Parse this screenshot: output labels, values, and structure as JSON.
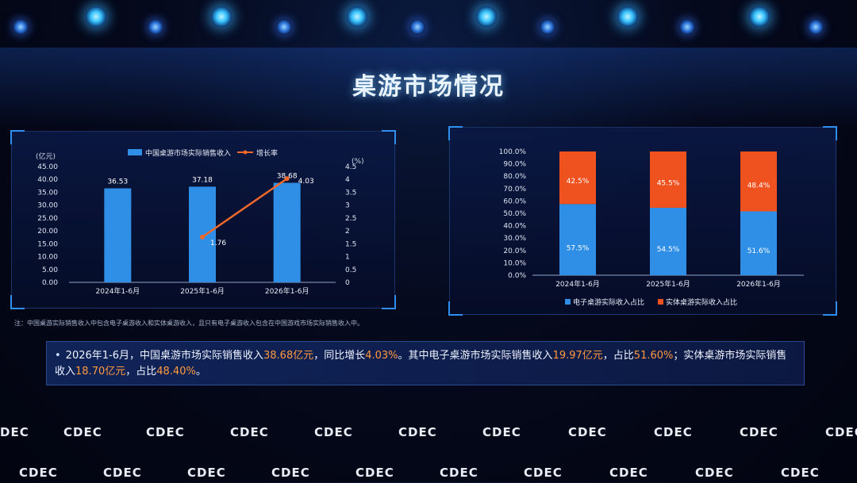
{
  "title": "桌游市场情况",
  "left_chart": {
    "y_unit": "(亿元)",
    "y2_unit": "(%)",
    "legend": {
      "bar": "中国桌游市场实际销售收入",
      "line": "增长率"
    },
    "colors": {
      "bar": "#2f8fe6",
      "line": "#f0692a"
    }
  },
  "right_chart": {
    "legend": {
      "digital": "电子桌游实际收入占比",
      "physical": "实体桌游实际收入占比"
    },
    "colors": {
      "digital": "#2f8fe6",
      "physical": "#f0521f"
    }
  },
  "chart_data": [
    {
      "type": "bar",
      "categories": [
        "2024年1-6月",
        "2025年1-6月",
        "2026年1-6月"
      ],
      "series": [
        {
          "name": "中国桌游市场实际销售收入",
          "values": [
            36.53,
            37.18,
            38.68
          ],
          "labels": [
            "36.53",
            "37.18",
            "38.68"
          ],
          "axis": "left"
        },
        {
          "name": "增长率",
          "type": "line",
          "values": [
            null,
            1.76,
            4.03
          ],
          "labels": [
            "",
            "1.76",
            "4.03"
          ],
          "axis": "right"
        }
      ],
      "ylabel": "(亿元)",
      "y2label": "(%)",
      "ylim": [
        0,
        45
      ],
      "yticks": [
        "0.00",
        "5.00",
        "10.00",
        "15.00",
        "20.00",
        "25.00",
        "30.00",
        "35.00",
        "40.00",
        "45.00"
      ],
      "y2lim": [
        0,
        4.5
      ],
      "y2ticks": [
        "0",
        "0.5",
        "1",
        "1.5",
        "2",
        "2.5",
        "3",
        "3.5",
        "4",
        "4.5"
      ],
      "legend_position": "top"
    },
    {
      "type": "bar",
      "stacked": true,
      "categories": [
        "2024年1-6月",
        "2025年1-6月",
        "2026年1-6月"
      ],
      "series": [
        {
          "name": "电子桌游实际收入占比",
          "values": [
            57.5,
            54.5,
            51.6
          ],
          "labels": [
            "57.5%",
            "54.5%",
            "51.6%"
          ]
        },
        {
          "name": "实体桌游实际收入占比",
          "values": [
            42.5,
            45.5,
            48.4
          ],
          "labels": [
            "42.5%",
            "45.5%",
            "48.4%"
          ]
        }
      ],
      "ylim": [
        0,
        100
      ],
      "yticks": [
        "0.0%",
        "10.0%",
        "20.0%",
        "30.0%",
        "40.0%",
        "50.0%",
        "60.0%",
        "70.0%",
        "80.0%",
        "90.0%",
        "100.0%"
      ],
      "legend_position": "bottom"
    }
  ],
  "footnote": "注：中国桌游实际销售收入中包含电子桌游收入和实体桌游收入，且只有电子桌游收入包含在中国游戏市场实际销售收入中。",
  "summary": {
    "bullet": "•",
    "parts": [
      "2026年1-6月，中国桌游市场实际销售收入",
      "38.68亿元",
      "，同比增长",
      "4.03%",
      "。其中电子桌游市场实际销售收入",
      "19.97亿元",
      "，占比",
      "51.60%",
      "；实体桌游市场实际销售收入",
      "18.70亿元",
      "，占比",
      "48.40%",
      "。"
    ]
  },
  "logos": {
    "text": "CDEC"
  }
}
